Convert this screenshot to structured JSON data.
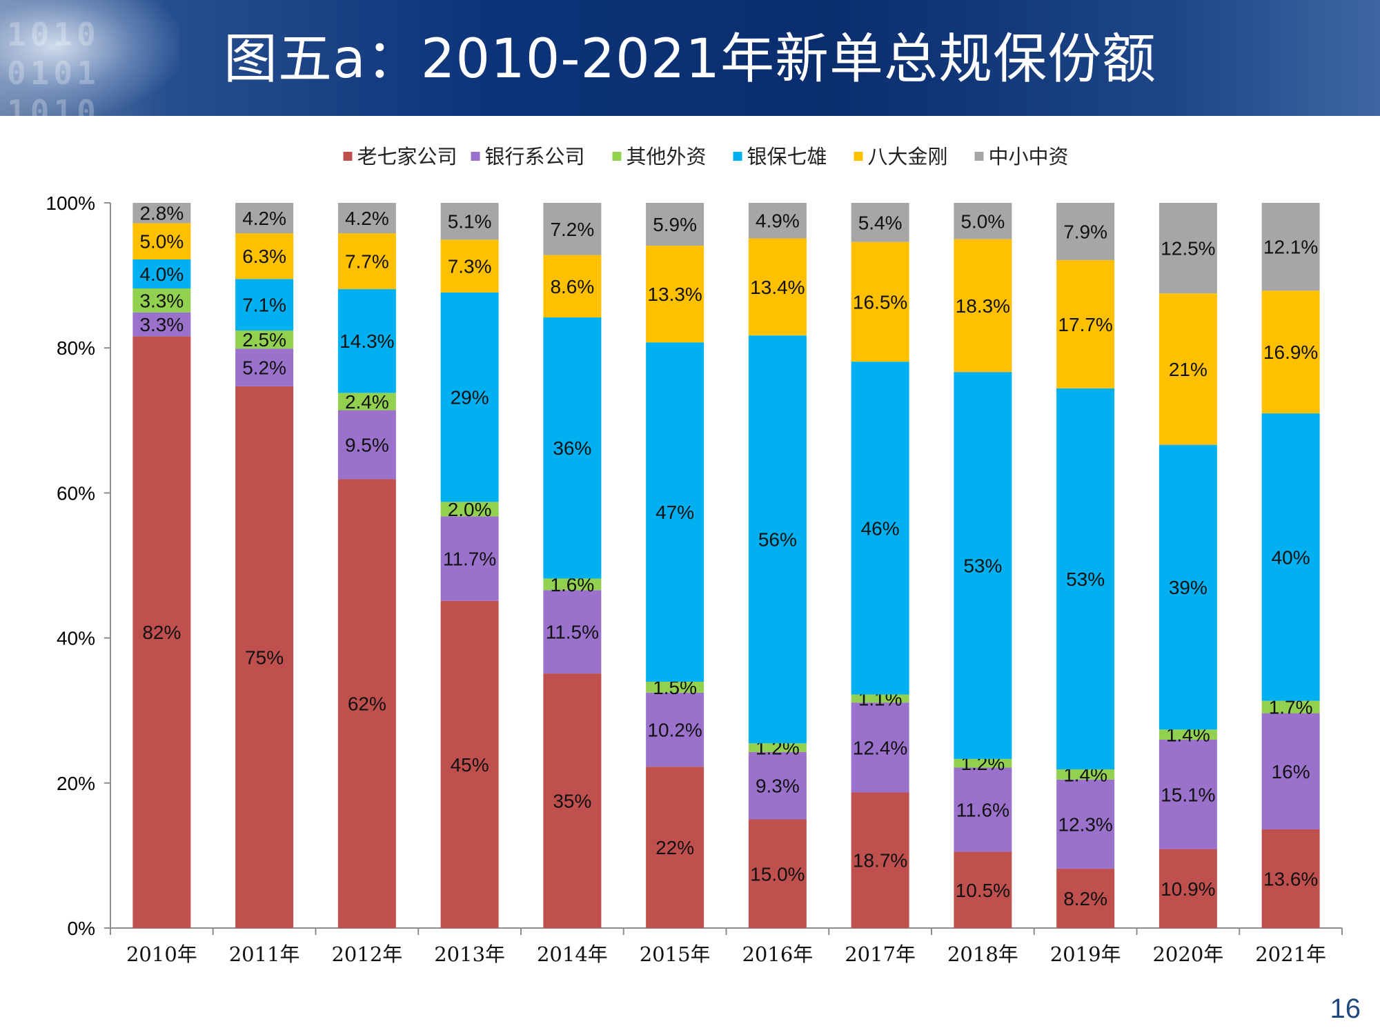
{
  "header": {
    "title": "图五a：2010-2021年新单总规保份额",
    "deco_text": [
      "1010",
      "0101",
      "1010"
    ]
  },
  "page_number": "16",
  "colors": {
    "老七家公司": "#c0504d",
    "银行系公司": "#9a72cc",
    "其他外资": "#92d050",
    "银保七雄": "#00b0f0",
    "八大金刚": "#ffc000",
    "中小中资": "#a6a6a6"
  },
  "chart_data": {
    "type": "bar",
    "stacked": true,
    "title": "图五a：2010-2021年新单总规保份额",
    "categories": [
      "2010年",
      "2011年",
      "2012年",
      "2013年",
      "2014年",
      "2015年",
      "2016年",
      "2017年",
      "2018年",
      "2019年",
      "2020年",
      "2021年"
    ],
    "ylim": [
      0,
      100
    ],
    "yticks": [
      "0%",
      "20%",
      "40%",
      "60%",
      "80%",
      "100%"
    ],
    "legend_position": "top",
    "series": [
      {
        "name": "老七家公司",
        "values": [
          81.6,
          74.7,
          61.9,
          45.3,
          35.1,
          22.2,
          15.0,
          18.7,
          10.5,
          8.2,
          10.9,
          13.6
        ],
        "labels": [
          "82%",
          "75%",
          "62%",
          "45%",
          "35%",
          "22%",
          "15.0%",
          "18.7%",
          "10.5%",
          "8.2%",
          "10.9%",
          "13.6%"
        ]
      },
      {
        "name": "银行系公司",
        "values": [
          3.3,
          5.2,
          9.5,
          11.7,
          11.5,
          10.2,
          9.3,
          12.4,
          11.6,
          12.3,
          15.1,
          16.0
        ],
        "labels": [
          "3.3%",
          "5.2%",
          "9.5%",
          "11.7%",
          "11.5%",
          "10.2%",
          "9.3%",
          "12.4%",
          "11.6%",
          "12.3%",
          "15.1%",
          "16%"
        ]
      },
      {
        "name": "其他外资",
        "values": [
          3.3,
          2.5,
          2.4,
          2.0,
          1.6,
          1.5,
          1.2,
          1.1,
          1.2,
          1.4,
          1.4,
          1.7
        ],
        "labels": [
          "3.3%",
          "2.5%",
          "2.4%",
          "2.0%",
          "1.6%",
          "1.5%",
          "1.2%",
          "1.1%",
          "1.2%",
          "1.4%",
          "1.4%",
          "1.7%"
        ]
      },
      {
        "name": "银保七雄",
        "values": [
          4.0,
          7.1,
          14.3,
          29.0,
          36.0,
          46.7,
          56.3,
          45.9,
          53.3,
          52.6,
          39.3,
          39.6
        ],
        "labels": [
          "4.0%",
          "7.1%",
          "14.3%",
          "29%",
          "36%",
          "47%",
          "56%",
          "46%",
          "53%",
          "53%",
          "39%",
          "40%"
        ]
      },
      {
        "name": "八大金刚",
        "values": [
          5.0,
          6.3,
          7.7,
          7.3,
          8.6,
          13.3,
          13.4,
          16.5,
          18.3,
          17.7,
          20.9,
          16.9
        ],
        "labels": [
          "5.0%",
          "6.3%",
          "7.7%",
          "7.3%",
          "8.6%",
          "13.3%",
          "13.4%",
          "16.5%",
          "18.3%",
          "17.7%",
          "21%",
          "16.9%"
        ]
      },
      {
        "name": "中小中资",
        "values": [
          2.8,
          4.2,
          4.2,
          5.1,
          7.2,
          5.9,
          4.9,
          5.4,
          5.0,
          7.9,
          12.5,
          12.1
        ],
        "labels": [
          "2.8%",
          "4.2%",
          "4.2%",
          "5.1%",
          "7.2%",
          "5.9%",
          "4.9%",
          "5.4%",
          "5.0%",
          "7.9%",
          "12.5%",
          "12.1%"
        ]
      }
    ]
  }
}
